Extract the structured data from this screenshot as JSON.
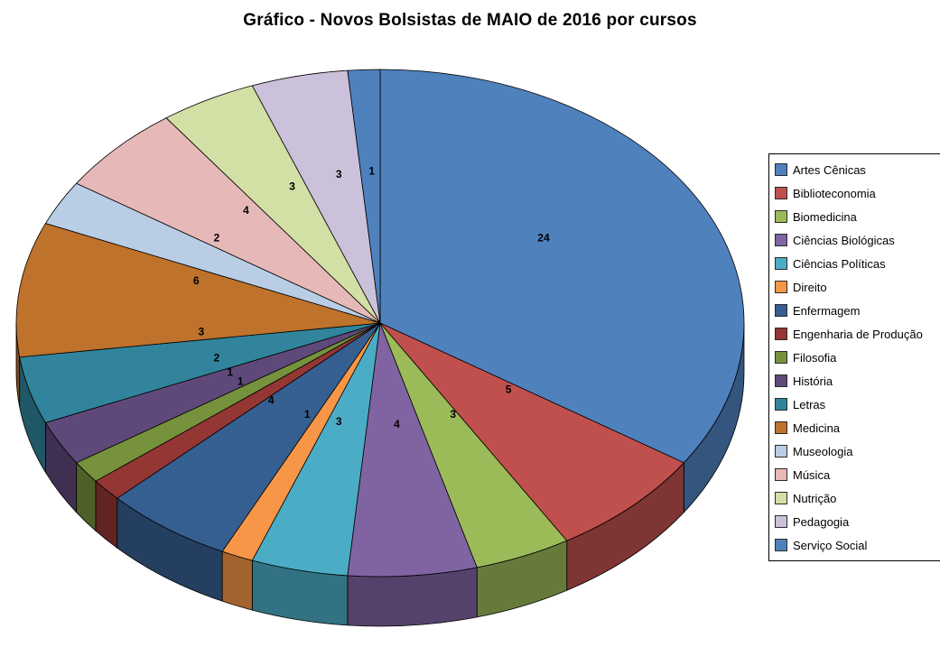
{
  "chart_data": {
    "type": "pie",
    "style": "3d",
    "title": "Gráfico - Novos Bolsistas de MAIO de 2016 por cursos",
    "legend_position": "right",
    "start_angle_deg": 0,
    "direction": "clockwise",
    "data_labels": "values",
    "total": 70,
    "categories": [
      "Artes Cênicas",
      "Biblioteconomia",
      "Biomedicina",
      "Ciências Biológicas",
      "Ciências Políticas",
      "Direito",
      "Enfermagem",
      "Engenharia de Produção",
      "Filosofia",
      "História",
      "Letras",
      "Medicina",
      "Museologia",
      "Música",
      "Nutrição",
      "Pedagogia",
      "Serviço Social"
    ],
    "values": [
      24,
      5,
      3,
      4,
      3,
      1,
      4,
      1,
      1,
      2,
      3,
      6,
      2,
      4,
      3,
      3,
      1
    ],
    "colors": [
      "#4F81BD",
      "#C0504D",
      "#9BBB59",
      "#8064A2",
      "#4BACC6",
      "#F79646",
      "#365F91",
      "#943634",
      "#76923C",
      "#5F497A",
      "#31849B",
      "#BE722C",
      "#B9CDE5",
      "#E6B9B8",
      "#D3E0A5",
      "#CCC1DA",
      "#4F81BD"
    ],
    "slice_outline_color": "#000000",
    "background_color": "#FFFFFF"
  }
}
